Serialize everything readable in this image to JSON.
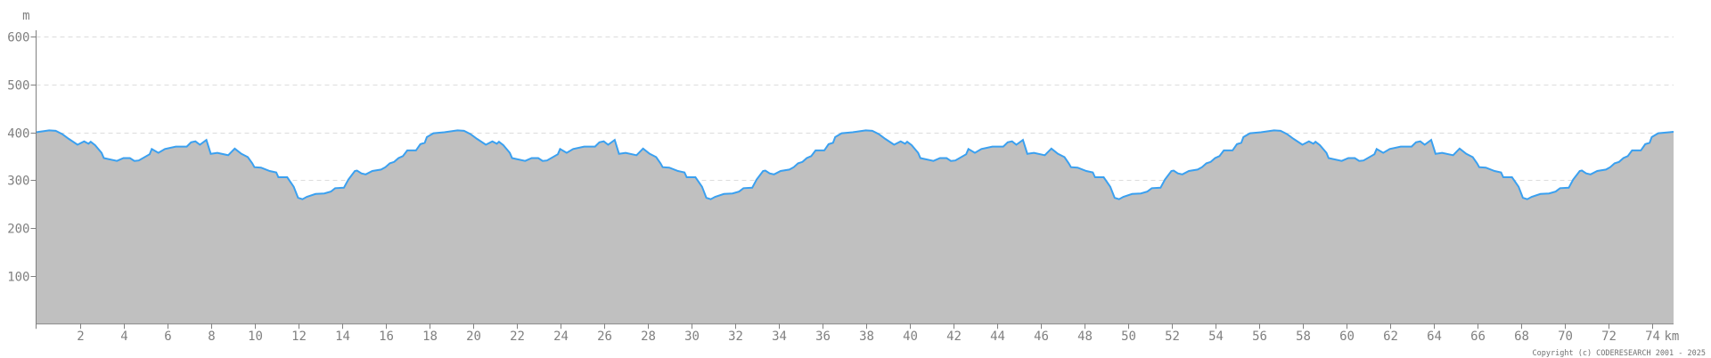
{
  "chart_data": {
    "type": "area",
    "title": "",
    "xlabel": "",
    "ylabel": "",
    "x_unit": "km",
    "y_unit": "m",
    "xlim": [
      0,
      75
    ],
    "ylim": [
      0,
      600
    ],
    "x_ticks": [
      2,
      4,
      6,
      8,
      10,
      12,
      14,
      16,
      18,
      20,
      22,
      24,
      26,
      28,
      30,
      32,
      34,
      36,
      38,
      40,
      42,
      44,
      46,
      48,
      50,
      52,
      54,
      56,
      58,
      60,
      62,
      64,
      66,
      68,
      70,
      72,
      74
    ],
    "y_ticks": [
      100,
      200,
      300,
      400,
      500,
      600
    ],
    "grid": "horizontal dashed",
    "line_color": "#3aa0f0",
    "fill_color": "#c0c0c0",
    "x": [
      0,
      0.6,
      0.9,
      1.2,
      1.5,
      1.9,
      2.2,
      2.4,
      2.5,
      2.7,
      3.0,
      3.1,
      3.7,
      4.0,
      4.3,
      4.5,
      4.7,
      5.2,
      5.3,
      5.6,
      5.9,
      6.4,
      6.9,
      7.1,
      7.3,
      7.5,
      7.8,
      8.0,
      8.3,
      8.8,
      9.1,
      9.4,
      9.7,
      9.9,
      10.0,
      10.3,
      10.7,
      11.0,
      11.1,
      11.5,
      11.8,
      12.0,
      12.2,
      12.4,
      12.8,
      13.2,
      13.5,
      13.7,
      14.1,
      14.3,
      14.6,
      14.7,
      14.9,
      15.1,
      15.4,
      15.8,
      16.0,
      16.2,
      16.4,
      16.6,
      16.8,
      17.0,
      17.4,
      17.6,
      17.8,
      17.9,
      18.2,
      18.7,
      19.3,
      19.6,
      19.9,
      20.2,
      20.6,
      20.9,
      21.1,
      21.2,
      21.4,
      21.7,
      21.8,
      22.4,
      22.7,
      23.0,
      23.2,
      23.4,
      23.9,
      24.0,
      24.3,
      24.6,
      25.1,
      25.6,
      25.8,
      26.0,
      26.2,
      26.5,
      26.7,
      27.0,
      27.5,
      27.8,
      28.1,
      28.4,
      28.6,
      28.7,
      29.0,
      29.4,
      29.7,
      29.8,
      30.2,
      30.5,
      30.7,
      30.9,
      31.1,
      31.5,
      31.9,
      32.2,
      32.4,
      32.8,
      33.0,
      33.3,
      33.4,
      33.6,
      33.8,
      34.1,
      34.5,
      34.7,
      34.9,
      35.1,
      35.3,
      35.5,
      35.7,
      36.1,
      36.3,
      36.5,
      36.6,
      36.9,
      37.4,
      38.0,
      38.3,
      38.6,
      38.9,
      39.3,
      39.6,
      39.8,
      39.9,
      40.1,
      40.4,
      40.5,
      41.1,
      41.4,
      41.7,
      41.9,
      42.1,
      42.6,
      42.7,
      43.0,
      43.3,
      43.8,
      44.3,
      44.5,
      44.7,
      44.9,
      45.2,
      45.4,
      45.7,
      46.2,
      46.5,
      46.8,
      47.1,
      47.3,
      47.4,
      47.7,
      48.1,
      48.4,
      48.5,
      48.9,
      49.2,
      49.4,
      49.6,
      49.8,
      50.2,
      50.6,
      50.9,
      51.1,
      51.5,
      51.7,
      52.0,
      52.1,
      52.3,
      52.5,
      52.8,
      53.2,
      53.4,
      53.6,
      53.8,
      54.0,
      54.2,
      54.4,
      54.8,
      55.0,
      55.2,
      55.3,
      55.6,
      56.1,
      56.7,
      57.0,
      57.3,
      57.6,
      58.0,
      58.3,
      58.5,
      58.6,
      58.8,
      59.1,
      59.2,
      59.8,
      60.1,
      60.4,
      60.6,
      60.8,
      61.3,
      61.4,
      61.7,
      62.0,
      62.5,
      63.0,
      63.2,
      63.4,
      63.6,
      63.9,
      64.1,
      64.4,
      64.9,
      65.2,
      65.5,
      65.8,
      66.0,
      66.1,
      66.4,
      66.8,
      67.1,
      67.2,
      67.6,
      67.9,
      68.1,
      68.3,
      68.5,
      68.9,
      69.3,
      69.6,
      69.8,
      70.2,
      70.4,
      70.7,
      70.8,
      71.0,
      71.2,
      71.5,
      71.9,
      72.1,
      72.3,
      72.5,
      72.7,
      72.9,
      73.1,
      73.5,
      73.7,
      73.9,
      74.0,
      74.3,
      74.8,
      75.0
    ],
    "y": [
      400,
      404,
      403,
      396,
      386,
      374,
      381,
      376,
      380,
      373,
      357,
      346,
      340,
      346,
      346,
      340,
      341,
      354,
      365,
      357,
      365,
      370,
      370,
      379,
      381,
      374,
      384,
      355,
      357,
      352,
      366,
      355,
      348,
      335,
      327,
      326,
      319,
      316,
      306,
      306,
      286,
      263,
      260,
      265,
      271,
      272,
      276,
      283,
      284,
      301,
      319,
      320,
      314,
      312,
      319,
      322,
      327,
      335,
      338,
      346,
      350,
      362,
      362,
      375,
      378,
      390,
      398,
      400,
      404,
      403,
      396,
      386,
      374,
      381,
      376,
      380,
      373,
      357,
      346,
      340,
      346,
      346,
      340,
      341,
      354,
      365,
      357,
      365,
      370,
      370,
      379,
      381,
      374,
      384,
      355,
      357,
      352,
      366,
      355,
      348,
      335,
      327,
      326,
      319,
      316,
      306,
      306,
      286,
      263,
      260,
      265,
      271,
      272,
      276,
      283,
      284,
      301,
      319,
      320,
      314,
      312,
      319,
      322,
      327,
      335,
      338,
      346,
      350,
      362,
      362,
      375,
      378,
      390,
      398,
      400,
      404,
      403,
      396,
      386,
      374,
      381,
      376,
      380,
      373,
      357,
      346,
      340,
      346,
      346,
      340,
      341,
      354,
      365,
      357,
      365,
      370,
      370,
      379,
      381,
      374,
      384,
      355,
      357,
      352,
      366,
      355,
      348,
      335,
      327,
      326,
      319,
      316,
      306,
      306,
      286,
      263,
      260,
      265,
      271,
      272,
      276,
      283,
      284,
      301,
      319,
      320,
      314,
      312,
      319,
      322,
      327,
      335,
      338,
      346,
      350,
      362,
      362,
      375,
      378,
      390,
      398,
      400,
      404,
      403,
      396,
      386,
      374,
      381,
      376,
      380,
      373,
      357,
      346,
      340,
      346,
      346,
      340,
      341,
      354,
      365,
      357,
      365,
      370,
      370,
      379,
      381,
      374,
      384,
      355,
      357,
      352,
      366,
      355,
      348,
      335,
      327,
      326,
      319,
      316,
      306,
      306,
      286,
      263,
      260,
      265,
      271,
      272,
      276,
      283,
      284,
      301,
      319,
      320,
      314,
      312,
      319,
      322,
      327,
      335,
      338,
      346,
      350,
      362,
      362,
      375,
      378,
      390,
      398,
      400,
      401
    ]
  },
  "copyright": "Copyright (c) CODERESEARCH 2001 - 2025"
}
